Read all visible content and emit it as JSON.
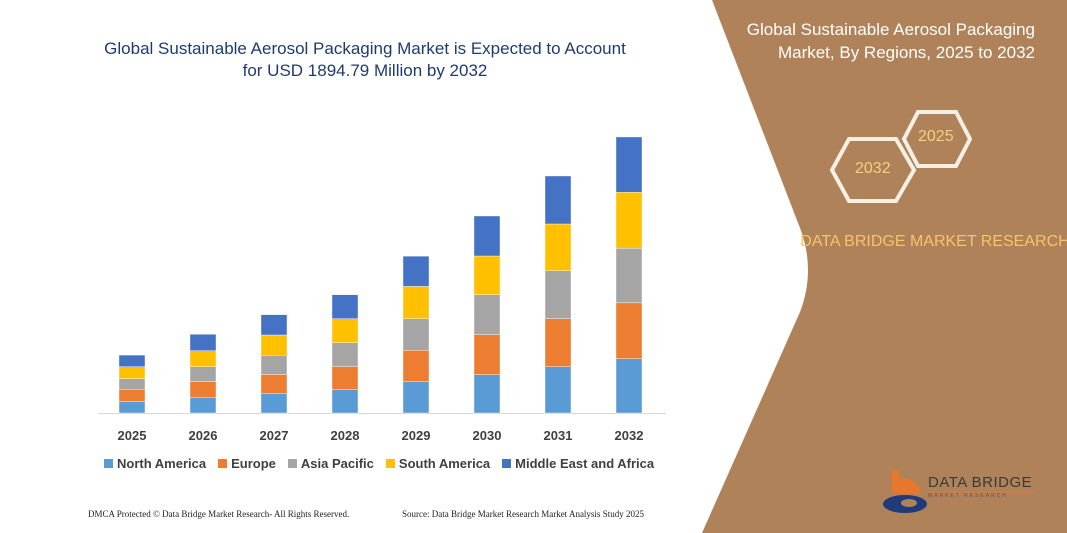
{
  "header": {
    "title": "Global Sustainable Aerosol Packaging Market is Expected to Account for USD 1894.79 Million by 2032"
  },
  "side_panel": {
    "title": "Global Sustainable Aerosol Packaging Market, By Regions, 2025 to 2032",
    "hex_start": "2025",
    "hex_end": "2032",
    "brand": "DATA BRIDGE MARKET RESEARCH",
    "logo_text": "DATA BRIDGE",
    "logo_sub": "MARKET RESEARCH",
    "panel_color": "#B08259"
  },
  "footer": {
    "left": "DMCA Protected © Data Bridge Market Research- All Rights Reserved.",
    "right": "Source: Data Bridge Market Research Market Analysis Study 2025"
  },
  "chart_data": {
    "type": "bar",
    "stacked": true,
    "title": "Global Sustainable Aerosol Packaging Market is Expected to Account for USD 1894.79 Million by 2032",
    "categories": [
      "2025",
      "2026",
      "2027",
      "2028",
      "2029",
      "2030",
      "2031",
      "2032"
    ],
    "series": [
      {
        "name": "North America",
        "color": "#5B9BD5",
        "values": [
          78,
          108,
          132,
          160,
          215,
          263,
          318,
          373
        ]
      },
      {
        "name": "Europe",
        "color": "#ED7D31",
        "values": [
          85,
          107,
          133,
          158,
          216,
          275,
          330,
          384
        ]
      },
      {
        "name": "Asia Pacific",
        "color": "#A5A5A5",
        "values": [
          73,
          103,
          132,
          165,
          217,
          275,
          330,
          376
        ]
      },
      {
        "name": "South America",
        "color": "#FFC000",
        "values": [
          82,
          110,
          139,
          165,
          222,
          266,
          321,
          384
        ]
      },
      {
        "name": "Middle East and Africa",
        "color": "#4472C4",
        "values": [
          80,
          113,
          140,
          165,
          208,
          275,
          330,
          380
        ]
      }
    ],
    "ylim": [
      0,
      2000
    ],
    "grid": false,
    "legend": "bottom"
  }
}
